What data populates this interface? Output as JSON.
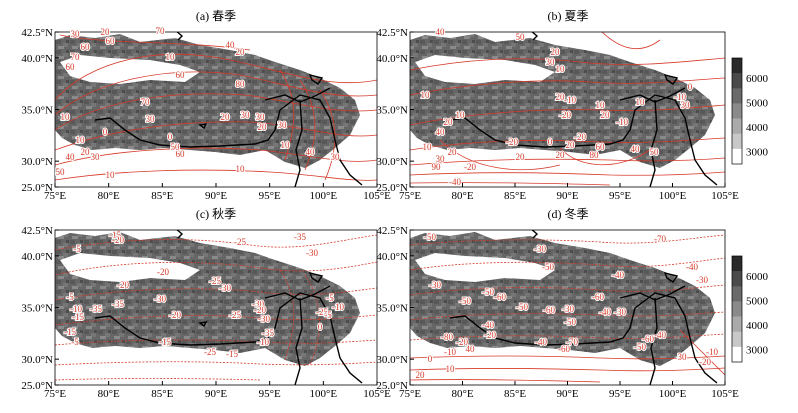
{
  "panels": [
    {
      "title": "(a) 春季",
      "contour_labels": [
        "30",
        "20",
        "60",
        "70",
        "60",
        "20",
        "10",
        "40",
        "60",
        "70",
        "60",
        "80",
        "70",
        "30",
        "30",
        "20",
        "10",
        "0",
        "0",
        "10",
        "20",
        "30",
        "40",
        "50",
        "60",
        "50",
        "10",
        "10",
        "30",
        "20",
        "30",
        "10",
        "40",
        "30"
      ]
    },
    {
      "title": "(b) 夏季",
      "contour_labels": [
        "40",
        "20",
        "10",
        "10",
        "50",
        "30",
        "10",
        "10",
        "20",
        "20",
        "-10",
        "10",
        "20",
        "-20",
        "40",
        "-20",
        "-10",
        "20",
        "10",
        "30",
        "-20",
        "60",
        "20",
        "20",
        "80",
        "90",
        "20",
        "0",
        "-10",
        "40",
        "50",
        "-40",
        "-20",
        "0",
        "30"
      ]
    },
    {
      "title": "(c) 秋季",
      "contour_labels": [
        "-15",
        "-20",
        "-5",
        "-20",
        "-25",
        "-35",
        "-30",
        "-25",
        "-30",
        "-30",
        "-20",
        "-35",
        "-35",
        "-5",
        "-10",
        "-15",
        "-15",
        "-5",
        "-15",
        "-25",
        "-20",
        "-15",
        "-30",
        "-35",
        "-30",
        "-10",
        "-25",
        "-20",
        "-5",
        "-25",
        "-10",
        "-5",
        "0"
      ]
    },
    {
      "title": "(d) 冬季",
      "contour_labels": [
        "-50",
        "-30",
        "-70",
        "-50",
        "-40",
        "-40",
        "-30",
        "-30",
        "-50",
        "-50",
        "-60",
        "-50",
        "-40",
        "-60",
        "-60",
        "-30",
        "-50",
        "-40",
        "-30",
        "-20",
        "-40",
        "-60",
        "-70",
        "-50",
        "-60",
        "-40",
        "-80",
        "-20",
        "40",
        "-10",
        "0",
        "10",
        "20",
        "30",
        "-20",
        "-10"
      ]
    }
  ],
  "axes": {
    "x_ticks": [
      "75°E",
      "80°E",
      "85°E",
      "90°E",
      "95°E",
      "100°E",
      "105°E"
    ],
    "y_ticks": [
      "42.5°N",
      "40.0°N",
      "35.0°N",
      "30.0°N",
      "25.0°N"
    ]
  },
  "colorbar": {
    "labels": [
      "6000",
      "5000",
      "4000",
      "3000"
    ],
    "colors": [
      "#2a2a2a",
      "#4a4a4a",
      "#6a6a6a",
      "#8a8a8a",
      "#aaaaaa",
      "#c8c8c8",
      "#ffffff"
    ]
  },
  "style": {
    "contour_color": "#d63a2a",
    "boundary_color": "#000000"
  }
}
